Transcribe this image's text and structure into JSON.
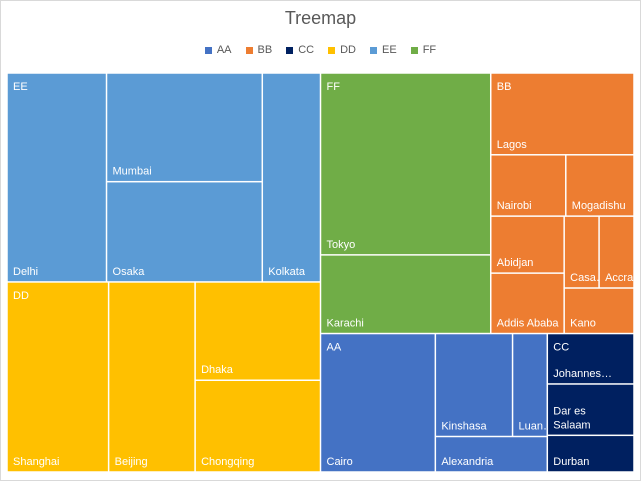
{
  "chart_data": {
    "type": "treemap",
    "title": "Treemap",
    "legend_position": "top",
    "groups": [
      {
        "name": "AA",
        "color": "#4472c4",
        "items": [
          {
            "label": "Cairo",
            "value": 20
          },
          {
            "label": "Kinshasa",
            "value": 10
          },
          {
            "label": "Luan…",
            "value": 4.5
          },
          {
            "label": "Alexandria",
            "value": 5
          }
        ]
      },
      {
        "name": "BB",
        "color": "#ed7d31",
        "items": [
          {
            "label": "Lagos",
            "value": 14
          },
          {
            "label": "Nairobi",
            "value": 5.5
          },
          {
            "label": "Mogadishu",
            "value": 5
          },
          {
            "label": "Abidjan",
            "value": 5
          },
          {
            "label": "Addis Ababa",
            "value": 5.3
          },
          {
            "label": "Casa…",
            "value": 3
          },
          {
            "label": "Accra",
            "value": 3
          },
          {
            "label": "Kano",
            "value": 3.8
          }
        ]
      },
      {
        "name": "CC",
        "color": "#002060",
        "items": [
          {
            "label": "Johannes…",
            "value": 5.5
          },
          {
            "label": "Dar es Salaam",
            "value": 5.6
          },
          {
            "label": "Durban",
            "value": 4
          }
        ]
      },
      {
        "name": "DD",
        "color": "#ffc000",
        "items": [
          {
            "label": "Shanghai",
            "value": 23.5
          },
          {
            "label": "Beijing",
            "value": 20
          },
          {
            "label": "Dhaka",
            "value": 15
          },
          {
            "label": "Chongqing",
            "value": 14
          }
        ]
      },
      {
        "name": "EE",
        "color": "#5b9bd5",
        "items": [
          {
            "label": "Delhi",
            "value": 25.3
          },
          {
            "label": "Mumbai",
            "value": 20.6
          },
          {
            "label": "Osaka",
            "value": 19
          },
          {
            "label": "Kolkata",
            "value": 14.8
          }
        ]
      },
      {
        "name": "FF",
        "color": "#70ad47",
        "items": [
          {
            "label": "Tokyo",
            "value": 37
          },
          {
            "label": "Karachi",
            "value": 16
          }
        ]
      }
    ]
  }
}
